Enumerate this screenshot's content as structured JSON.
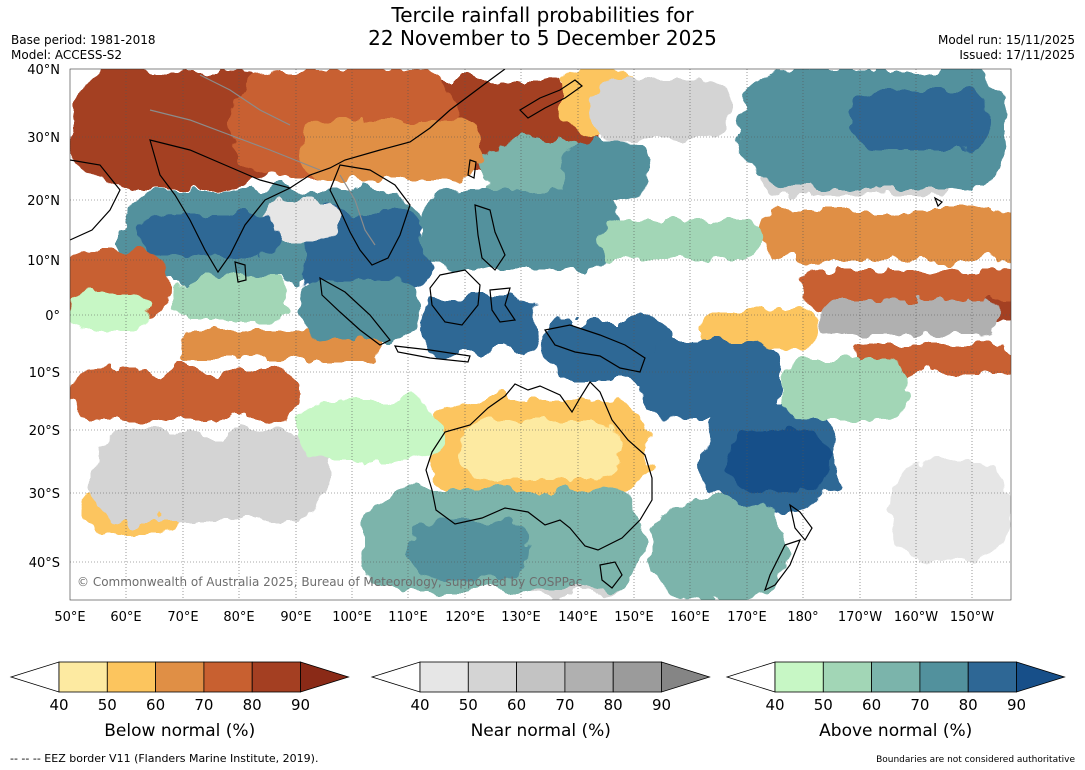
{
  "title": {
    "line1": "Tercile rainfall probabilities for",
    "line2": "22 November to 5 December 2025"
  },
  "meta_left": {
    "base_period": "Base period: 1981-2018",
    "model": "Model: ACCESS-S2"
  },
  "meta_right": {
    "model_run": "Model run: 15/11/2025",
    "issued": "Issued: 17/11/2025"
  },
  "map": {
    "lat_labels": [
      "40°N",
      "30°N",
      "20°N",
      "10°N",
      "0°",
      "10°S",
      "20°S",
      "30°S",
      "40°S"
    ],
    "lon_labels": [
      "50°E",
      "60°E",
      "70°E",
      "80°E",
      "90°E",
      "100°E",
      "110°E",
      "120°E",
      "130°E",
      "140°E",
      "150°E",
      "160°E",
      "170°E",
      "180°",
      "170°W",
      "160°W",
      "150°W"
    ],
    "copyright": "© Commonwealth of Australia 2025, Bureau of Meteorology, supported by COSPPac",
    "colors": {
      "below": [
        "#fdeaa1",
        "#fcc55e",
        "#e08f45",
        "#c86030",
        "#a43f22",
        "#8a2a17"
      ],
      "near": [
        "#e6e6e6",
        "#d4d4d4",
        "#c3c3c3",
        "#b0b0b0",
        "#9b9b9b",
        "#858585"
      ],
      "above": [
        "#c7f7c5",
        "#a2d6b6",
        "#7bb4ab",
        "#52919d",
        "#2e6795",
        "#174f89"
      ],
      "land_outline": "#000000",
      "border": "#8c8c8c",
      "grid": "#555555"
    }
  },
  "colorbars": [
    {
      "title": "Below normal (%)",
      "ticks": [
        "40",
        "50",
        "60",
        "70",
        "80",
        "90"
      ]
    },
    {
      "title": "Near normal (%)",
      "ticks": [
        "40",
        "50",
        "60",
        "70",
        "80",
        "90"
      ]
    },
    {
      "title": "Above normal (%)",
      "ticks": [
        "40",
        "50",
        "60",
        "70",
        "80",
        "90"
      ]
    }
  ],
  "footer": {
    "eez": "--  --  -- EEZ border V11 (Flanders Marine Institute, 2019).",
    "boundaries": "Boundaries are not considered authoritative"
  }
}
